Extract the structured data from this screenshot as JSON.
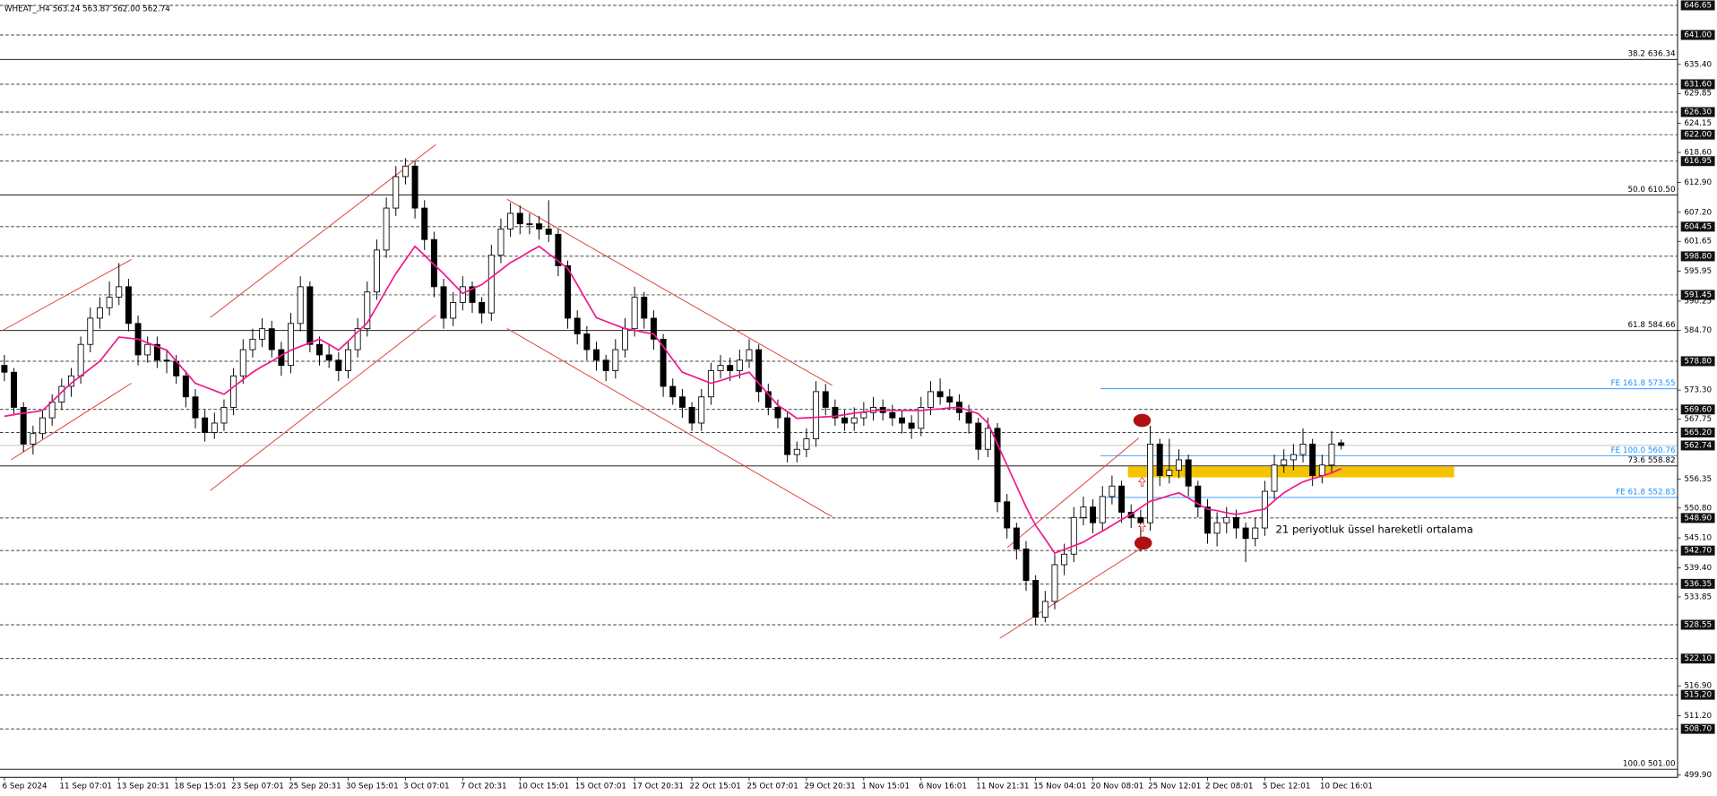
{
  "chart_data": {
    "type": "candlestick",
    "title": "WHEAT_,H4  563.24 563.87 562.00 562.74",
    "annotation": "21 periyotluk üssel hareketli ortalama",
    "candle_color": "#000000",
    "ylim": [
      499.45,
      647.25
    ],
    "yticks": [
      {
        "value": 635.4,
        "label": "635.40"
      },
      629.85,
      624.15,
      {
        "value": 618.6,
        "label": "618.60"
      },
      {
        "value": 612.9,
        "label": "612.90"
      },
      {
        "value": 607.2,
        "label": "607.20"
      },
      601.65,
      595.95,
      590.25,
      {
        "value": 584.7,
        "label": "584.70"
      },
      {
        "value": 573.3,
        "label": "573.30"
      },
      567.75,
      556.35,
      {
        "value": 550.8,
        "label": "550.80"
      },
      {
        "value": 545.1,
        "label": "545.10"
      },
      {
        "value": 539.4,
        "label": "539.40"
      },
      533.85,
      {
        "value": 516.9,
        "label": "516.90"
      },
      {
        "value": 511.2,
        "label": "511.20"
      },
      {
        "value": 499.9,
        "label": "499.90"
      }
    ],
    "levels": [
      646.65,
      {
        "value": 641,
        "label": "641.00"
      },
      {
        "value": 631.6,
        "label": "631.60"
      },
      {
        "value": 626.3,
        "label": "626.30"
      },
      {
        "value": 622,
        "label": "622.00"
      },
      616.95,
      604.45,
      {
        "value": 598.8,
        "label": "598.80"
      },
      591.45,
      {
        "value": 578.8,
        "label": "578.80"
      },
      {
        "value": 569.6,
        "label": "569.60"
      },
      {
        "value": 565.2,
        "label": "565.20"
      },
      {
        "value": 548.9,
        "label": "548.90"
      },
      {
        "value": 542.7,
        "label": "542.70"
      },
      536.35,
      528.55,
      {
        "value": 522.1,
        "label": "522.10"
      },
      {
        "value": 515.2,
        "label": "515.20"
      },
      {
        "value": 508.7,
        "label": "508.70"
      }
    ],
    "last_price": 562.74,
    "fib_levels": [
      {
        "value": 636.34,
        "label": "38.2 636.34"
      },
      {
        "value": 610.5,
        "label": "50.0 610.50"
      },
      {
        "value": 584.66,
        "label": "61.8 584.66"
      },
      {
        "value": 558.82,
        "label": "73.6 558.82"
      },
      {
        "value": 501,
        "label": "100.0 501.00"
      }
    ],
    "fe_color": "#1e90ff",
    "fe_levels": [
      {
        "value": 573.55,
        "label": "FE 161.8 573.55"
      },
      {
        "value": 560.76,
        "label": "FE 100.0 560.76"
      },
      {
        "value": 552.83,
        "label": "FE 61.8 552.83"
      }
    ],
    "categories": [
      "6 Sep 2024",
      null,
      null,
      null,
      null,
      null,
      "11 Sep 07:01",
      null,
      null,
      null,
      null,
      null,
      "13 Sep 20:31",
      null,
      null,
      null,
      null,
      null,
      "18 Sep 15:01",
      null,
      null,
      null,
      null,
      null,
      "23 Sep 07:01",
      null,
      null,
      null,
      null,
      null,
      "25 Sep 20:31",
      null,
      null,
      null,
      null,
      null,
      "30 Sep 15:01",
      null,
      null,
      null,
      null,
      null,
      "3 Oct 07:01",
      null,
      null,
      null,
      null,
      null,
      "7 Oct 20:31",
      null,
      null,
      null,
      null,
      null,
      "10 Oct 15:01",
      null,
      null,
      null,
      null,
      null,
      "15 Oct 07:01",
      null,
      null,
      null,
      null,
      null,
      "17 Oct 20:31",
      null,
      null,
      null,
      null,
      null,
      "22 Oct 15:01",
      null,
      null,
      null,
      null,
      null,
      "25 Oct 07:01",
      null,
      null,
      null,
      null,
      null,
      "29 Oct 20:31",
      null,
      null,
      null,
      null,
      null,
      "1 Nov 15:01",
      null,
      null,
      null,
      null,
      null,
      "6 Nov 16:01",
      null,
      null,
      null,
      null,
      null,
      "11 Nov 21:31",
      null,
      null,
      null,
      null,
      null,
      "15 Nov 04:01",
      null,
      null,
      null,
      null,
      null,
      "20 Nov 08:01",
      null,
      null,
      null,
      null,
      null,
      "25 Nov 12:01",
      null,
      null,
      null,
      null,
      null,
      "2 Dec 08:01",
      null,
      null,
      null,
      null,
      null,
      "5 Dec 12:01",
      null,
      null,
      null,
      null,
      null,
      "10 Dec 16:01",
      null,
      null
    ],
    "ohlc": [
      [
        578,
        580,
        575,
        576.7
      ],
      [
        576.7,
        577.5,
        568.5,
        570
      ],
      [
        570,
        571,
        561.5,
        563
      ],
      [
        563,
        566.5,
        561,
        565
      ],
      [
        565,
        569.5,
        564,
        568
      ],
      [
        568,
        572.5,
        566.5,
        571
      ],
      [
        571,
        575.5,
        569.5,
        574
      ],
      [
        574,
        577.5,
        572,
        576
      ],
      [
        576,
        583.5,
        574.5,
        582
      ],
      [
        582,
        589,
        580.5,
        587
      ],
      [
        587,
        591,
        585,
        589
      ],
      [
        589,
        594,
        587.5,
        591
      ],
      [
        591,
        597.5,
        589.5,
        593
      ],
      [
        593,
        594.5,
        584.5,
        586
      ],
      [
        586,
        587.5,
        578,
        580
      ],
      [
        580,
        583.5,
        578.5,
        582
      ],
      [
        582,
        583.5,
        577.5,
        579
      ],
      [
        579,
        581,
        576.5,
        578.8
      ],
      [
        578.8,
        580,
        574.5,
        576
      ],
      [
        576,
        577,
        570,
        572
      ],
      [
        572,
        573.5,
        566,
        568
      ],
      [
        568,
        569.5,
        563.5,
        565.2
      ],
      [
        565.2,
        569,
        564,
        567
      ],
      [
        567,
        571.5,
        565.5,
        570
      ],
      [
        570,
        577.5,
        568.5,
        576
      ],
      [
        576,
        583,
        574.5,
        581
      ],
      [
        581,
        585,
        579.5,
        583
      ],
      [
        583,
        587,
        581.5,
        585
      ],
      [
        585,
        586.5,
        579.5,
        581
      ],
      [
        581,
        582.5,
        576,
        578
      ],
      [
        578,
        588,
        576.5,
        586
      ],
      [
        586,
        595,
        584.5,
        593
      ],
      [
        593,
        594,
        580.5,
        582
      ],
      [
        582,
        583.5,
        578,
        580
      ],
      [
        580,
        582,
        577.5,
        579
      ],
      [
        579,
        580.5,
        575,
        577
      ],
      [
        577,
        582.5,
        575.5,
        581
      ],
      [
        581,
        587,
        579.5,
        585
      ],
      [
        585,
        594,
        583.5,
        592
      ],
      [
        592,
        602,
        590.5,
        600
      ],
      [
        600,
        610,
        598.5,
        608
      ],
      [
        608,
        616,
        606.5,
        614
      ],
      [
        614,
        617.5,
        612.5,
        616
      ],
      [
        616,
        617,
        606,
        608
      ],
      [
        608,
        609.5,
        600,
        602
      ],
      [
        602,
        603.5,
        591,
        593
      ],
      [
        593,
        594.5,
        585,
        587
      ],
      [
        587,
        592,
        585.5,
        590
      ],
      [
        590,
        595,
        588.5,
        593
      ],
      [
        593,
        594,
        588,
        590
      ],
      [
        590,
        591,
        586,
        588
      ],
      [
        588,
        601,
        586.5,
        599
      ],
      [
        599,
        606,
        597.5,
        604
      ],
      [
        604,
        609,
        602.5,
        607
      ],
      [
        607,
        608.5,
        603,
        605
      ],
      [
        605,
        607,
        603,
        605
      ],
      [
        605,
        606.5,
        602,
        604
      ],
      [
        604,
        609.5,
        601.5,
        603
      ],
      [
        603,
        604,
        595,
        597
      ],
      [
        597,
        598,
        585,
        587
      ],
      [
        587,
        588.5,
        582,
        584
      ],
      [
        584,
        585.5,
        579,
        581
      ],
      [
        581,
        582.5,
        577,
        579
      ],
      [
        579,
        580,
        575,
        577
      ],
      [
        577,
        583,
        575.5,
        581
      ],
      [
        581,
        587,
        579.5,
        585
      ],
      [
        585,
        593,
        583.5,
        591
      ],
      [
        591,
        592,
        585,
        587
      ],
      [
        587,
        588.5,
        581,
        583
      ],
      [
        583,
        584,
        572,
        574
      ],
      [
        574,
        575.5,
        570.5,
        572
      ],
      [
        572,
        573.5,
        568,
        570
      ],
      [
        570,
        571,
        565.5,
        567
      ],
      [
        567,
        573.5,
        565.5,
        572
      ],
      [
        572,
        578.5,
        570.5,
        577
      ],
      [
        577,
        580,
        575.5,
        578
      ],
      [
        578,
        579.5,
        575,
        577
      ],
      [
        577,
        581,
        575.5,
        579
      ],
      [
        579,
        583,
        577.5,
        581
      ],
      [
        581,
        582,
        571,
        573
      ],
      [
        573,
        574.5,
        568.5,
        570
      ],
      [
        570,
        571.5,
        566,
        568
      ],
      [
        568,
        569,
        559.5,
        561
      ],
      [
        561,
        563.5,
        559.5,
        562
      ],
      [
        562,
        566,
        560.5,
        564
      ],
      [
        564,
        575,
        562.5,
        573
      ],
      [
        573,
        574.5,
        568.5,
        570
      ],
      [
        570,
        571.5,
        566.5,
        568
      ],
      [
        568,
        569.5,
        565.5,
        567
      ],
      [
        567,
        570,
        565.5,
        568
      ],
      [
        568,
        571,
        566.5,
        569
      ],
      [
        569,
        572,
        567.5,
        570
      ],
      [
        570,
        571.5,
        567.5,
        569
      ],
      [
        569,
        570.5,
        566.5,
        568
      ],
      [
        568,
        569.5,
        565,
        567
      ],
      [
        567,
        568.5,
        564,
        566
      ],
      [
        566,
        572,
        564.5,
        570
      ],
      [
        570,
        575,
        568.5,
        573
      ],
      [
        573,
        575.5,
        570.5,
        572
      ],
      [
        572,
        573.5,
        569.5,
        571
      ],
      [
        571,
        572.5,
        567.5,
        569
      ],
      [
        569,
        570.5,
        565,
        567
      ],
      [
        567,
        568,
        560,
        562
      ],
      [
        562,
        568,
        560.5,
        566
      ],
      [
        566,
        567,
        550,
        552
      ],
      [
        552,
        553.5,
        545,
        547
      ],
      [
        547,
        548,
        541,
        543
      ],
      [
        543,
        544.5,
        535,
        537
      ],
      [
        537,
        538,
        528.5,
        530
      ],
      [
        530,
        535,
        529,
        533
      ],
      [
        533,
        542,
        531.5,
        540
      ],
      [
        540,
        544,
        538,
        542
      ],
      [
        542,
        551,
        540.5,
        549
      ],
      [
        549,
        553,
        547.5,
        551
      ],
      [
        551,
        552.5,
        546,
        548
      ],
      [
        548,
        555,
        546.5,
        553
      ],
      [
        553,
        557,
        551.5,
        555
      ],
      [
        555,
        556,
        548,
        550
      ],
      [
        550,
        551.5,
        547,
        549
      ],
      [
        549,
        550.5,
        542.5,
        548
      ],
      [
        548,
        566.5,
        546.5,
        563
      ],
      [
        563,
        564,
        555,
        557
      ],
      [
        557,
        564,
        555.5,
        558
      ],
      [
        558,
        562,
        556.5,
        560
      ],
      [
        560,
        561,
        553,
        555
      ],
      [
        555,
        556,
        549,
        551
      ],
      [
        551,
        552.5,
        544,
        546
      ],
      [
        546,
        550,
        543.5,
        548
      ],
      [
        548,
        551,
        546,
        549
      ],
      [
        549,
        550.5,
        545,
        547
      ],
      [
        547,
        548,
        540.5,
        545
      ],
      [
        545,
        549,
        543.5,
        547
      ],
      [
        547,
        556,
        545.5,
        554
      ],
      [
        554,
        561,
        552.5,
        559
      ],
      [
        559,
        562,
        557.5,
        560
      ],
      [
        560,
        563,
        558,
        561
      ],
      [
        561,
        566,
        559.5,
        563
      ],
      [
        563,
        564,
        555,
        557
      ],
      [
        557,
        561,
        555.5,
        559
      ],
      [
        559,
        565.5,
        557.5,
        563
      ],
      [
        563.24,
        563.87,
        562.0,
        562.74
      ]
    ],
    "ema": {
      "color": "#f0188c",
      "values": [
        568.3,
        568.6,
        568.9,
        569.1,
        569.4,
        571.1,
        572.9,
        574.6,
        576,
        577.4,
        578.8,
        581.1,
        583.4,
        583.2,
        583,
        582.3,
        581.6,
        580.9,
        578.8,
        576.7,
        574.6,
        573.9,
        573.2,
        572.5,
        573.9,
        575.3,
        576.7,
        577.8,
        578.8,
        579.9,
        580.9,
        581.6,
        582.3,
        583,
        582,
        580.9,
        582.6,
        584.4,
        586.1,
        589.2,
        592.4,
        595.5,
        598.1,
        600.7,
        599,
        597.2,
        595.5,
        593.6,
        591.7,
        592.6,
        593.4,
        594.8,
        596.2,
        597.6,
        598.6,
        599.7,
        600.7,
        599.3,
        597.9,
        596.5,
        593.4,
        590.2,
        587.1,
        586.4,
        585.7,
        585,
        584.7,
        584.3,
        584,
        581.6,
        579.1,
        576.7,
        576,
        575.3,
        574.6,
        575.1,
        575.7,
        576.2,
        576.7,
        574.6,
        572.5,
        570.4,
        569.2,
        567.9,
        568,
        568.1,
        568.2,
        568.3,
        568.6,
        568.9,
        569.1,
        569.4,
        569.4,
        569.4,
        569.4,
        569.4,
        569.4,
        569.6,
        569.7,
        569.9,
        570,
        569.4,
        568.8,
        567,
        563,
        559,
        555,
        551,
        547.5,
        544.9,
        542.2,
        542.9,
        543.6,
        544.3,
        545.4,
        546.4,
        547.5,
        548.6,
        549.6,
        550.9,
        552.1,
        552.6,
        553.2,
        553.7,
        552.7,
        551.6,
        550.6,
        550.3,
        549.9,
        549.6,
        549.9,
        550.3,
        550.6,
        552.2,
        553.7,
        554.8,
        555.8,
        556.4,
        556.9,
        557.5,
        558.3
      ]
    }
  }
}
